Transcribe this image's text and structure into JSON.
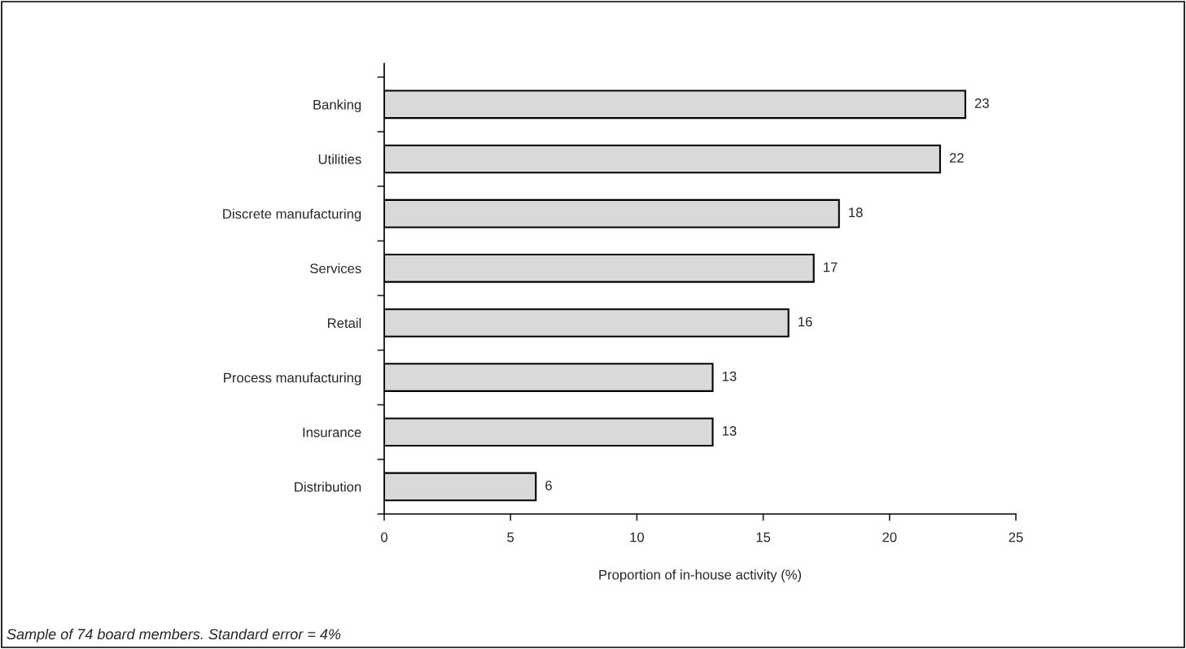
{
  "chart_data": {
    "type": "bar",
    "orientation": "horizontal",
    "xlabel": "Proportion of in-house activity (%)",
    "categories": [
      "Banking",
      "Utilities",
      "Discrete manufacturing",
      "Services",
      "Retail",
      "Process manufacturing",
      "Insurance",
      "Distribution"
    ],
    "values": [
      23,
      22,
      18,
      17,
      16,
      13,
      13,
      6
    ],
    "color": "#d9d9d9",
    "xlim": [
      0,
      25
    ],
    "xticks": [
      0,
      5,
      10,
      15,
      20,
      25
    ],
    "data_labels": true,
    "grid": false,
    "legend": false,
    "annotations": [
      "Sample of 74 board members. Standard error = 4%"
    ]
  }
}
